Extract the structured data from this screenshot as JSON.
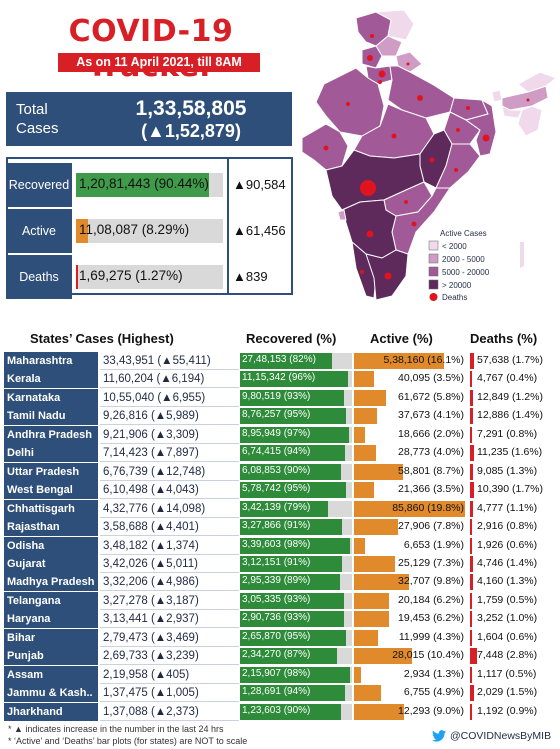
{
  "header": {
    "title": "COVID-19 Tracker",
    "subtitle": "As on 11 April 2021, till 8AM"
  },
  "total": {
    "label": "Total Cases",
    "value": "1,33,58,805",
    "delta": "(▲1,52,879)"
  },
  "summary": [
    {
      "label": "Recovered",
      "text": "1,20,81,443 (90.44%)",
      "fraction": 0.9044,
      "delta": "▲90,584",
      "color": "#3f9b4a"
    },
    {
      "label": "Active",
      "text": "11,08,087 (8.29%)",
      "fraction": 0.0829,
      "delta": "▲61,456",
      "color": "#e08a2c"
    },
    {
      "label": "Deaths",
      "text": "1,69,275 (1.27%)",
      "fraction": 0.0127,
      "delta": "▲839",
      "color": "#d81f26"
    }
  ],
  "legend": {
    "title": "Active Cases",
    "items": [
      {
        "label": "< 2000",
        "color": "#efd9ea"
      },
      {
        "label": "2000 - 5000",
        "color": "#cf9cc6"
      },
      {
        "label": "5000 - 20000",
        "color": "#a15a97"
      },
      {
        "label": "> 20000",
        "color": "#5e2a5c"
      }
    ],
    "deaths_label": "Deaths",
    "deaths_color": "#e0141e"
  },
  "table": {
    "headers": {
      "states": "States’ Cases (Highest)",
      "recovered": "Recovered (%)",
      "active": "Active (%)",
      "deaths": "Deaths (%)"
    },
    "rows": [
      {
        "state": "Maharashtra",
        "cases": "33,43,951 (▲55,411)",
        "recovered": "27,48,153 (82%)",
        "rec_pct": 82,
        "active": "5,38,160 (16.1%)",
        "act_pct": 16.1,
        "deaths": "57,638 (1.7%)",
        "dth_pct": 1.7
      },
      {
        "state": "Kerala",
        "cases": "11,60,204 (▲6,194)",
        "recovered": "11,15,342 (96%)",
        "rec_pct": 96,
        "active": "40,095 (3.5%)",
        "act_pct": 3.5,
        "deaths": "4,767 (0.4%)",
        "dth_pct": 0.4
      },
      {
        "state": "Karnataka",
        "cases": "10,55,040 (▲6,955)",
        "recovered": "9,80,519 (93%)",
        "rec_pct": 93,
        "active": "61,672 (5.8%)",
        "act_pct": 5.8,
        "deaths": "12,849 (1.2%)",
        "dth_pct": 1.2
      },
      {
        "state": "Tamil Nadu",
        "cases": "9,26,816 (▲5,989)",
        "recovered": "8,76,257 (95%)",
        "rec_pct": 95,
        "active": "37,673 (4.1%)",
        "act_pct": 4.1,
        "deaths": "12,886 (1.4%)",
        "dth_pct": 1.4
      },
      {
        "state": "Andhra Pradesh",
        "cases": "9,21,906 (▲3,309)",
        "recovered": "8,95,949 (97%)",
        "rec_pct": 97,
        "active": "18,666 (2.0%)",
        "act_pct": 2.0,
        "deaths": "7,291 (0.8%)",
        "dth_pct": 0.8
      },
      {
        "state": "Delhi",
        "cases": "7,14,423 (▲7,897)",
        "recovered": "6,74,415 (94%)",
        "rec_pct": 94,
        "active": "28,773 (4.0%)",
        "act_pct": 4.0,
        "deaths": "11,235 (1.6%)",
        "dth_pct": 1.6
      },
      {
        "state": "Uttar Pradesh",
        "cases": "6,76,739 (▲12,748)",
        "recovered": "6,08,853 (90%)",
        "rec_pct": 90,
        "active": "58,801 (8.7%)",
        "act_pct": 8.7,
        "deaths": "9,085 (1.3%)",
        "dth_pct": 1.3
      },
      {
        "state": "West Bengal",
        "cases": "6,10,498 (▲4,043)",
        "recovered": "5,78,742 (95%)",
        "rec_pct": 95,
        "active": "21,366 (3.5%)",
        "act_pct": 3.5,
        "deaths": "10,390 (1.7%)",
        "dth_pct": 1.7
      },
      {
        "state": "Chhattisgarh",
        "cases": "4,32,776 (▲14,098)",
        "recovered": "3,42,139 (79%)",
        "rec_pct": 79,
        "active": "85,860 (19.8%)",
        "act_pct": 19.8,
        "deaths": "4,777 (1.1%)",
        "dth_pct": 1.1
      },
      {
        "state": "Rajasthan",
        "cases": "3,58,688 (▲4,401)",
        "recovered": "3,27,866 (91%)",
        "rec_pct": 91,
        "active": "27,906 (7.8%)",
        "act_pct": 7.8,
        "deaths": "2,916 (0.8%)",
        "dth_pct": 0.8
      },
      {
        "state": "Odisha",
        "cases": "3,48,182 (▲1,374)",
        "recovered": "3,39,603 (98%)",
        "rec_pct": 98,
        "active": "6,653 (1.9%)",
        "act_pct": 1.9,
        "deaths": "1,926 (0.6%)",
        "dth_pct": 0.6
      },
      {
        "state": "Gujarat",
        "cases": "3,42,026 (▲5,011)",
        "recovered": "3,12,151 (91%)",
        "rec_pct": 91,
        "active": "25,129 (7.3%)",
        "act_pct": 7.3,
        "deaths": "4,746 (1.4%)",
        "dth_pct": 1.4
      },
      {
        "state": "Madhya Pradesh",
        "cases": "3,32,206 (▲4,986)",
        "recovered": "2,95,339 (89%)",
        "rec_pct": 89,
        "active": "32,707 (9.8%)",
        "act_pct": 9.8,
        "deaths": "4,160 (1.3%)",
        "dth_pct": 1.3
      },
      {
        "state": "Telangana",
        "cases": "3,27,278 (▲3,187)",
        "recovered": "3,05,335 (93%)",
        "rec_pct": 93,
        "active": "20,184 (6.2%)",
        "act_pct": 6.2,
        "deaths": "1,759 (0.5%)",
        "dth_pct": 0.5
      },
      {
        "state": "Haryana",
        "cases": "3,13,441 (▲2,937)",
        "recovered": "2,90,736 (93%)",
        "rec_pct": 93,
        "active": "19,453 (6.2%)",
        "act_pct": 6.2,
        "deaths": "3,252 (1.0%)",
        "dth_pct": 1.0
      },
      {
        "state": "Bihar",
        "cases": "2,79,473 (▲3,469)",
        "recovered": "2,65,870 (95%)",
        "rec_pct": 95,
        "active": "11,999 (4.3%)",
        "act_pct": 4.3,
        "deaths": "1,604 (0.6%)",
        "dth_pct": 0.6
      },
      {
        "state": "Punjab",
        "cases": "2,69,733 (▲3,239)",
        "recovered": "2,34,270 (87%)",
        "rec_pct": 87,
        "active": "28,015 (10.4%)",
        "act_pct": 10.4,
        "deaths": "7,448 (2.8%)",
        "dth_pct": 2.8
      },
      {
        "state": "Assam",
        "cases": "2,19,958 (▲405)",
        "recovered": "2,15,907 (98%)",
        "rec_pct": 98,
        "active": "2,934 (1.3%)",
        "act_pct": 1.3,
        "deaths": "1,117 (0.5%)",
        "dth_pct": 0.5
      },
      {
        "state": "Jammu & Kash..",
        "cases": "1,37,475 (▲1,005)",
        "recovered": "1,28,691 (94%)",
        "rec_pct": 94,
        "active": "6,755 (4.9%)",
        "act_pct": 4.9,
        "deaths": "2,029 (1.5%)",
        "dth_pct": 1.5
      },
      {
        "state": "Jharkhand",
        "cases": "1,37,088 (▲2,373)",
        "recovered": "1,23,603 (90%)",
        "rec_pct": 90,
        "active": "12,293 (9.0%)",
        "act_pct": 9.0,
        "deaths": "1,192 (0.9%)",
        "dth_pct": 0.9
      }
    ]
  },
  "footer": {
    "note1": "* ▲ indicates increase in the number in the last 24 hrs",
    "note2": "* ‘Active’ and ‘Deaths’ bar plots (for states) are NOT to scale",
    "twitter": "@COVIDNewsByMIB",
    "twitter_icon": "twitter-bird-icon"
  }
}
